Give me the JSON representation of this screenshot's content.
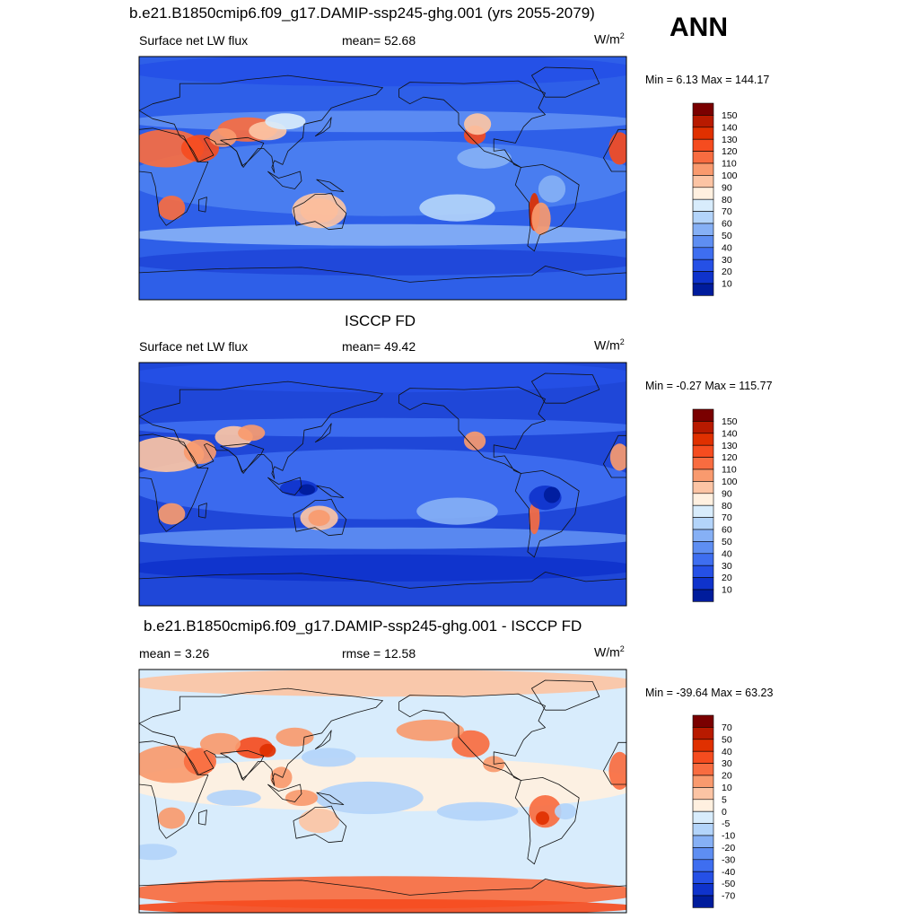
{
  "corner_label": "ANN",
  "panels": [
    {
      "title": "b.e21.B1850cmip6.f09_g17.DAMIP-ssp245-ghg.001 (yrs 2055-2079)",
      "left_label": "Surface net LW flux",
      "center_label": "mean=  52.68",
      "unit": "W/m",
      "unit_sup": "2",
      "minmax": "Min =   6.13 Max = 144.17",
      "colorbar": {
        "levels": [
          "150",
          "140",
          "130",
          "120",
          "110",
          "100",
          "90",
          "80",
          "70",
          "60",
          "50",
          "40",
          "30",
          "20",
          "10"
        ],
        "colors": [
          "#7a0000",
          "#b81a00",
          "#e03000",
          "#f54c1f",
          "#f86c40",
          "#f99a6e",
          "#fcc4a4",
          "#fff0e0",
          "#d8ecfc",
          "#b3d4fa",
          "#86b0f5",
          "#5e8ef2",
          "#3e6ef0",
          "#2550e6",
          "#0f33cc",
          "#001c9c"
        ]
      },
      "scheme": "abs1"
    },
    {
      "title": "ISCCP FD",
      "left_label": "Surface net LW flux",
      "center_label": "mean=  49.42",
      "unit": "W/m",
      "unit_sup": "2",
      "minmax": "Min =  -0.27 Max = 115.77",
      "colorbar": {
        "levels": [
          "150",
          "140",
          "130",
          "120",
          "110",
          "100",
          "90",
          "80",
          "70",
          "60",
          "50",
          "40",
          "30",
          "20",
          "10"
        ],
        "colors": [
          "#7a0000",
          "#b81a00",
          "#e03000",
          "#f54c1f",
          "#f86c40",
          "#f99a6e",
          "#fcc4a4",
          "#fff0e0",
          "#d8ecfc",
          "#b3d4fa",
          "#86b0f5",
          "#5e8ef2",
          "#3e6ef0",
          "#2550e6",
          "#0f33cc",
          "#001c9c"
        ]
      },
      "scheme": "abs2"
    },
    {
      "title": "b.e21.B1850cmip6.f09_g17.DAMIP-ssp245-ghg.001 - ISCCP FD",
      "left_label": "mean =   3.26",
      "center_label": "rmse =  12.58",
      "unit": "W/m",
      "unit_sup": "2",
      "minmax": "Min = -39.64 Max =  63.23",
      "colorbar": {
        "levels": [
          "70",
          "50",
          "40",
          "30",
          "20",
          "10",
          "5",
          "0",
          "-5",
          "-10",
          "-20",
          "-30",
          "-40",
          "-50",
          "-70"
        ],
        "colors": [
          "#7a0000",
          "#b81a00",
          "#e03000",
          "#f54c1f",
          "#f86c40",
          "#f99a6e",
          "#fcc4a4",
          "#fff0e0",
          "#d8ecfc",
          "#b3d4fa",
          "#86b0f5",
          "#5e8ef2",
          "#3e6ef0",
          "#2550e6",
          "#0f33cc",
          "#001c9c"
        ]
      },
      "scheme": "diff"
    }
  ],
  "chart_data": {
    "type": "heatmap",
    "title": "ANN",
    "maps": [
      {
        "title": "b.e21.B1850cmip6.f09_g17.DAMIP-ssp245-ghg.001 (yrs 2055-2079)",
        "variable": "Surface net LW flux",
        "mean": 52.68,
        "min": 6.13,
        "max": 144.17,
        "units": "W/m2",
        "levels": [
          10,
          20,
          30,
          40,
          50,
          60,
          70,
          80,
          90,
          100,
          110,
          120,
          130,
          140,
          150
        ]
      },
      {
        "title": "ISCCP FD",
        "variable": "Surface net LW flux",
        "mean": 49.42,
        "min": -0.27,
        "max": 115.77,
        "units": "W/m2",
        "levels": [
          10,
          20,
          30,
          40,
          50,
          60,
          70,
          80,
          90,
          100,
          110,
          120,
          130,
          140,
          150
        ]
      },
      {
        "title": "b.e21.B1850cmip6.f09_g17.DAMIP-ssp245-ghg.001 - ISCCP FD",
        "mean": 3.26,
        "rmse": 12.58,
        "min": -39.64,
        "max": 63.23,
        "units": "W/m2",
        "levels": [
          -70,
          -50,
          -40,
          -30,
          -20,
          -10,
          -5,
          0,
          5,
          10,
          20,
          30,
          40,
          50,
          70
        ]
      }
    ]
  }
}
